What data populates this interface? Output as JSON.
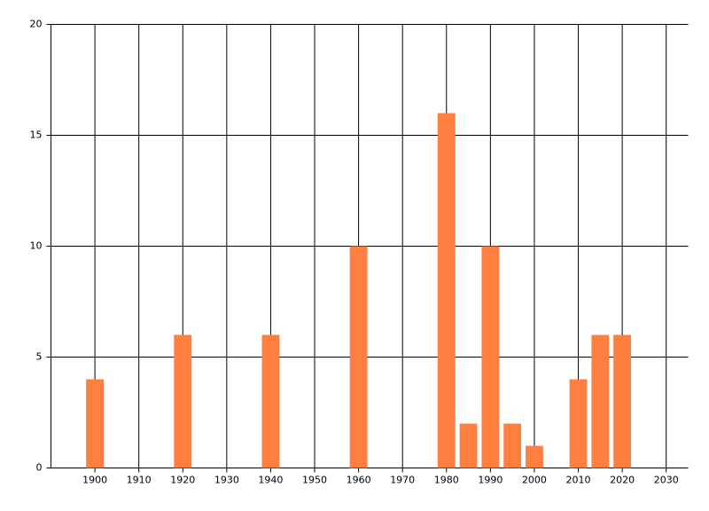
{
  "chart_data": {
    "type": "bar",
    "color": "#ff7f41",
    "bar_width": 4,
    "x": [
      1900,
      1920,
      1940,
      1960,
      1980,
      1985,
      1990,
      1995,
      2000,
      2010,
      2015,
      2020
    ],
    "values": [
      4,
      6,
      6,
      10,
      16,
      2,
      10,
      2,
      1,
      4,
      6,
      6
    ],
    "xlim": [
      1890,
      2035
    ],
    "xticks": [
      1900,
      1910,
      1920,
      1930,
      1940,
      1950,
      1960,
      1970,
      1980,
      1990,
      2000,
      2010,
      2020,
      2030
    ],
    "ylim": [
      0,
      20
    ],
    "yticks": [
      0,
      5,
      10,
      15,
      20
    ],
    "grid": true
  }
}
